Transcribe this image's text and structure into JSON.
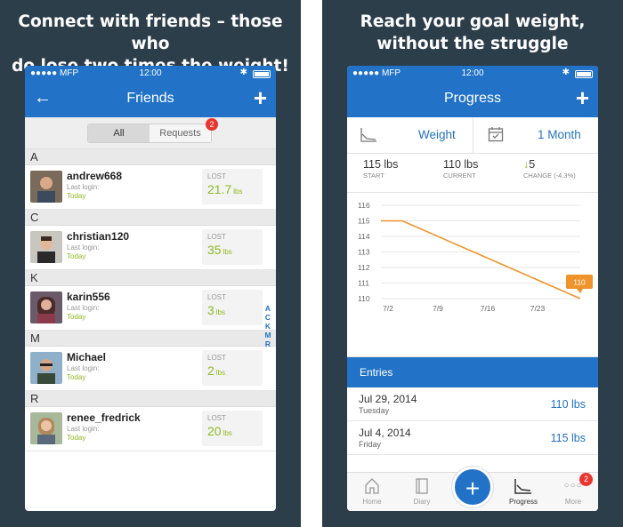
{
  "left": {
    "headline_line1": "Connect with friends – those who",
    "headline_line2": "do lose two times the weight!",
    "status": {
      "carrier": "●●●●● MFP",
      "time": "12:00"
    },
    "nav": {
      "title": "Friends",
      "back": "←",
      "add": "+"
    },
    "segments": {
      "all": "All",
      "requests": "Requests",
      "requests_badge": "2"
    },
    "sections": [
      {
        "letter": "A",
        "name": "andrew668",
        "login": "Last login:",
        "when": "Today",
        "lost_label": "LOST",
        "lost_value": "21.7",
        "unit": "lbs"
      },
      {
        "letter": "C",
        "name": "christian120",
        "login": "Last login:",
        "when": "Today",
        "lost_label": "LOST",
        "lost_value": "35",
        "unit": "lbs"
      },
      {
        "letter": "K",
        "name": "karin556",
        "login": "Last login:",
        "when": "Today",
        "lost_label": "LOST",
        "lost_value": "3",
        "unit": "lbs"
      },
      {
        "letter": "M",
        "name": "Michael",
        "login": "Last login:",
        "when": "Today",
        "lost_label": "LOST",
        "lost_value": "2",
        "unit": "lbs"
      },
      {
        "letter": "R",
        "name": "renee_fredrick",
        "login": "Last login:",
        "when": "Today",
        "lost_label": "LOST",
        "lost_value": "20",
        "unit": "lbs"
      }
    ],
    "index_letters": [
      "A",
      "C",
      "K",
      "M",
      "R"
    ]
  },
  "right": {
    "headline_line1": "Reach your goal weight,",
    "headline_line2": "without the struggle",
    "status": {
      "carrier": "●●●●● MFP",
      "time": "12:00"
    },
    "nav": {
      "title": "Progress",
      "add": "+"
    },
    "filters": {
      "metric": "Weight",
      "range": "1 Month"
    },
    "stats": {
      "start_value": "115 lbs",
      "start_label": "START",
      "current_value": "110 lbs",
      "current_label": "CURRENT",
      "change_value": "5",
      "change_label": "CHANGE (-4.3%)"
    },
    "entries_title": "Entries",
    "entries": [
      {
        "date": "Jul 29, 2014",
        "day": "Tuesday",
        "weight": "110 lbs"
      },
      {
        "date": "Jul 4, 2014",
        "day": "Friday",
        "weight": "115 lbs"
      }
    ],
    "tabs": {
      "home": "Home",
      "diary": "Diary",
      "add": "+",
      "progress": "Progress",
      "more": "More",
      "more_badge": "2",
      "more_dots": "○○○"
    },
    "colors": {
      "accent": "#2273c7",
      "green": "#8cbb22",
      "line": "#f0932b",
      "badge": "#e8352e"
    }
  },
  "chart_data": {
    "type": "line",
    "x": [
      "7/2",
      "7/9",
      "7/16",
      "7/23"
    ],
    "points": [
      {
        "x": "7/1",
        "y": 115
      },
      {
        "x": "7/4",
        "y": 115
      },
      {
        "x": "7/29",
        "y": 110
      }
    ],
    "ylim": [
      110,
      116
    ],
    "yticks": [
      110,
      111,
      112,
      113,
      114,
      115,
      116
    ],
    "last_label": "110",
    "grid": true
  }
}
